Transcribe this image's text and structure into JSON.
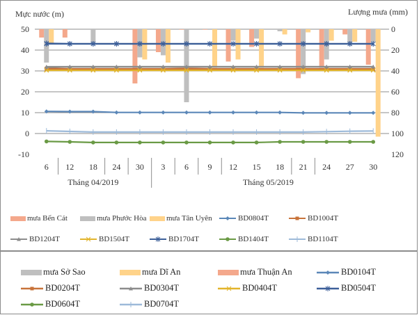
{
  "chart_data": {
    "type": "bar+line",
    "left_axis": {
      "label": "Mực nước (m)",
      "min": -10,
      "max": 50,
      "step": 10,
      "ticks": [
        "50",
        "40",
        "30",
        "20",
        "10",
        "0",
        "-10"
      ]
    },
    "right_axis": {
      "label": "Lượng mưa (mm)",
      "min": 0,
      "max": 120,
      "step": 20,
      "inverted": true,
      "ticks": [
        "0",
        "20",
        "40",
        "60",
        "80",
        "100",
        "120"
      ]
    },
    "grid": true,
    "categories": [
      "6",
      "12",
      "18",
      "24",
      "30",
      "3",
      "6",
      "9",
      "12",
      "15",
      "18",
      "21",
      "24",
      "27",
      "30"
    ],
    "groups": [
      {
        "label": "Tháng 04/2019",
        "count": 5
      },
      {
        "label": "Tháng 05/2019",
        "count": 10
      }
    ],
    "bar_series": [
      {
        "name": "mưa Bến Cát",
        "color": "#f4a88c",
        "values": [
          8,
          8,
          0,
          0,
          52,
          22,
          0.5,
          0.5,
          31,
          17,
          0,
          47,
          37,
          5,
          34
        ]
      },
      {
        "name": "mưa Phước Hòa",
        "color": "#bfbfbf",
        "values": [
          32,
          0,
          13,
          0,
          27,
          25,
          70,
          0,
          11,
          9,
          2,
          43,
          29,
          13,
          12
        ]
      },
      {
        "name": "mưa Tân Uyên",
        "color": "#ffd38a",
        "values": [
          13,
          0,
          0,
          0,
          29,
          32,
          0,
          37,
          29,
          37,
          5,
          3,
          11,
          12,
          103
        ]
      }
    ],
    "line_series": [
      {
        "name": "BD0804T",
        "color": "#5b87b8",
        "marker": "diamond",
        "values": [
          null,
          null,
          null,
          null,
          null,
          null,
          null,
          null,
          null,
          null,
          null,
          null,
          null,
          null,
          null
        ]
      },
      {
        "name": "BD1004T",
        "color": "#c8733a",
        "marker": "square",
        "values": [
          31.2,
          31.0,
          31.0,
          31.0,
          31.0,
          31.0,
          31.2,
          31.0,
          31.0,
          31.0,
          31.0,
          31.0,
          31.0,
          31.0,
          31.0
        ]
      },
      {
        "name": "BD1204T",
        "color": "#8c8c8c",
        "marker": "triangle",
        "values": [
          32.0,
          32.0,
          32.0,
          32.0,
          32.0,
          32.0,
          32.0,
          32.0,
          32.0,
          32.0,
          32.0,
          32.0,
          32.0,
          32.0,
          32.0
        ]
      },
      {
        "name": "BD1504T",
        "color": "#e2b42a",
        "marker": "x",
        "values": [
          30.5,
          30.5,
          30.5,
          30.5,
          30.5,
          30.5,
          30.5,
          30.5,
          30.5,
          30.5,
          30.5,
          30.5,
          30.5,
          30.5,
          30.5
        ]
      },
      {
        "name": "BD1704T",
        "color": "#3c5f99",
        "marker": "star",
        "values": [
          43.2,
          43.0,
          43.0,
          43.0,
          43.0,
          43.0,
          43.0,
          43.0,
          43.0,
          43.0,
          43.0,
          43.0,
          43.0,
          43.0,
          43.0
        ]
      },
      {
        "name": "BD1404T",
        "color": "#6a9a45",
        "marker": "circle",
        "values": [
          null,
          null,
          null,
          null,
          null,
          null,
          null,
          null,
          null,
          null,
          null,
          null,
          null,
          null,
          null
        ]
      },
      {
        "name": "BD1104T",
        "color": "#9dbad9",
        "marker": "plus",
        "values": [
          null,
          null,
          null,
          null,
          null,
          null,
          null,
          null,
          null,
          null,
          null,
          null,
          null,
          null,
          null
        ]
      },
      {
        "name": "BD0104T",
        "color": "#5b87b8",
        "marker": "diamond",
        "values": [
          10.6,
          10.5,
          10.5,
          10.1,
          10.1,
          10.1,
          10.1,
          10.1,
          10.1,
          10.1,
          10.1,
          9.9,
          9.9,
          9.9,
          9.9
        ]
      },
      {
        "name": "BD0204T",
        "color": "#c8733a",
        "marker": "square",
        "values": [
          31.0,
          30.8,
          30.8,
          30.8,
          30.8,
          30.8,
          31.0,
          30.8,
          30.8,
          30.8,
          30.8,
          30.8,
          30.8,
          30.8,
          30.8
        ]
      },
      {
        "name": "BD0304T",
        "color": "#8c8c8c",
        "marker": "triangle",
        "values": [
          31.8,
          32.0,
          32.0,
          32.0,
          32.0,
          32.0,
          32.0,
          32.0,
          32.0,
          32.0,
          32.0,
          32.0,
          32.0,
          32.0,
          32.0
        ]
      },
      {
        "name": "BD0404T",
        "color": "#e2b42a",
        "marker": "x",
        "values": [
          30.3,
          30.3,
          30.3,
          30.3,
          30.3,
          30.3,
          30.3,
          30.3,
          30.3,
          30.3,
          30.3,
          30.3,
          30.3,
          30.3,
          30.3
        ]
      },
      {
        "name": "BD0504T",
        "color": "#3c5f99",
        "marker": "star",
        "values": [
          43.0,
          43.0,
          43.0,
          43.0,
          43.0,
          43.0,
          43.0,
          43.0,
          43.0,
          43.0,
          43.0,
          43.0,
          43.0,
          43.0,
          43.0
        ]
      },
      {
        "name": "BD0604T",
        "color": "#6a9a45",
        "marker": "circle",
        "values": [
          -3.8,
          -4.0,
          -4.3,
          -4.3,
          -4.3,
          -4.3,
          -4.3,
          -4.3,
          -4.3,
          -4.3,
          -4.0,
          -4.0,
          -4.0,
          -4.0,
          -4.0
        ]
      },
      {
        "name": "BD0704T",
        "color": "#9dbad9",
        "marker": "plus",
        "values": [
          1.3,
          1.0,
          0.7,
          0.7,
          0.7,
          0.7,
          0.7,
          0.7,
          0.7,
          0.7,
          0.7,
          0.7,
          0.9,
          1.1,
          1.2
        ]
      }
    ],
    "legend_top": [
      "mưa Bến Cát",
      "mưa Phước Hòa",
      "mưa Tân Uyên",
      "BD0804T",
      "BD1004T",
      "BD1204T",
      "BD1504T",
      "BD1704T",
      "BD1404T",
      "BD1104T"
    ],
    "legend_bottom": [
      "mưa Sở Sao",
      "mưa Dĩ An",
      "mưa Thuận An",
      "BD0104T",
      "BD0204T",
      "BD0304T",
      "BD0404T",
      "BD0504T",
      "BD0604T",
      "BD0704T"
    ],
    "legend_placement": "bottom"
  },
  "legend_top": [
    {
      "label": "mưa Bến Cát",
      "kind": "bar",
      "color": "#f4a88c"
    },
    {
      "label": "mưa Phước Hòa",
      "kind": "bar",
      "color": "#bfbfbf"
    },
    {
      "label": "mưa Tân Uyên",
      "kind": "bar",
      "color": "#ffd38a"
    },
    {
      "label": "BD0804T",
      "kind": "line",
      "color": "#5b87b8",
      "marker": "diamond"
    },
    {
      "label": "BD1004T",
      "kind": "line",
      "color": "#c8733a",
      "marker": "square"
    },
    {
      "label": "BD1204T",
      "kind": "line",
      "color": "#8c8c8c",
      "marker": "triangle"
    },
    {
      "label": "BD1504T",
      "kind": "line",
      "color": "#e2b42a",
      "marker": "x"
    },
    {
      "label": "BD1704T",
      "kind": "line",
      "color": "#3c5f99",
      "marker": "star"
    },
    {
      "label": "BD1404T",
      "kind": "line",
      "color": "#6a9a45",
      "marker": "circle"
    },
    {
      "label": "BD1104T",
      "kind": "line",
      "color": "#9dbad9",
      "marker": "plus"
    }
  ],
  "legend_bottom": [
    {
      "label": "mưa Sở Sao",
      "kind": "bar",
      "color": "#bfbfbf"
    },
    {
      "label": "mưa Dĩ An",
      "kind": "bar",
      "color": "#ffd38a"
    },
    {
      "label": "mưa Thuận An",
      "kind": "bar",
      "color": "#f4a88c"
    },
    {
      "label": "BD0104T",
      "kind": "line",
      "color": "#5b87b8",
      "marker": "diamond"
    },
    {
      "label": "BD0204T",
      "kind": "line",
      "color": "#c8733a",
      "marker": "square"
    },
    {
      "label": "BD0304T",
      "kind": "line",
      "color": "#8c8c8c",
      "marker": "triangle"
    },
    {
      "label": "BD0404T",
      "kind": "line",
      "color": "#e2b42a",
      "marker": "x"
    },
    {
      "label": "BD0504T",
      "kind": "line",
      "color": "#3c5f99",
      "marker": "star"
    },
    {
      "label": "BD0604T",
      "kind": "line",
      "color": "#6a9a45",
      "marker": "circle"
    },
    {
      "label": "BD0704T",
      "kind": "line",
      "color": "#9dbad9",
      "marker": "plus"
    }
  ]
}
